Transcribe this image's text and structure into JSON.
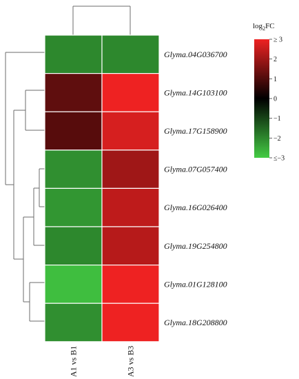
{
  "chart_data": {
    "type": "heatmap",
    "title": "",
    "columns": [
      "A1 vs B1",
      "A3 vs B3"
    ],
    "rows": [
      "Glyma.04G036700",
      "Glyma.14G103100",
      "Glyma.17G158900",
      "Glyma.07G057400",
      "Glyma.16G026400",
      "Glyma.19G254800",
      "Glyma.01G128100",
      "Glyma.18G208800"
    ],
    "values": [
      [
        -2.0,
        -2.0
      ],
      [
        1.2,
        3.0
      ],
      [
        1.1,
        2.7
      ],
      [
        -2.1,
        2.0
      ],
      [
        -2.2,
        2.4
      ],
      [
        -2.0,
        2.3
      ],
      [
        -2.8,
        3.0
      ],
      [
        -2.1,
        3.0
      ]
    ],
    "legend": {
      "title_main": "log",
      "title_sub": "2",
      "title_suffix": "FC",
      "min": -3,
      "max": 3,
      "ticks": [
        "≥ 3",
        "2",
        "1",
        "0",
        "−1",
        "−2",
        "≤−3"
      ],
      "colors": {
        "low": "#44cc44",
        "mid": "#000000",
        "high": "#ee2222"
      }
    },
    "row_dendrogram": true,
    "column_dendrogram": true
  }
}
